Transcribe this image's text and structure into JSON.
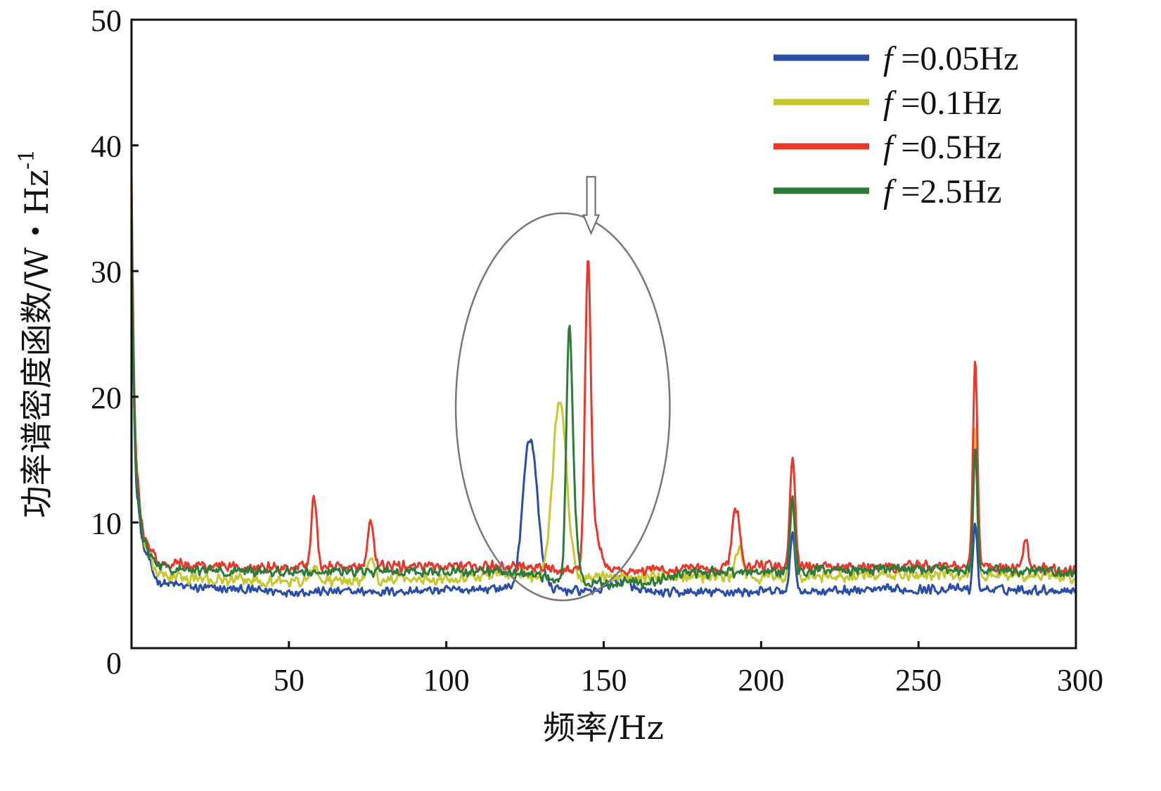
{
  "chart_data": {
    "type": "line",
    "xlabel": "频率/Hz",
    "ylabel": "功率谱密度函数/W・Hz",
    "ylabel_exponent": "-1",
    "xlim": [
      0,
      300
    ],
    "ylim": [
      0,
      50
    ],
    "xticks": [
      0,
      50,
      100,
      150,
      200,
      250,
      300
    ],
    "yticks": [
      0,
      10,
      20,
      30,
      40,
      50
    ],
    "grid": false,
    "legend_position": "top-right",
    "series": [
      {
        "name": "f =0.05Hz",
        "symbol": "f",
        "label": "=0.05Hz",
        "color": "#2a4ea8",
        "baseline": [
          [
            0,
            36
          ],
          [
            2,
            12
          ],
          [
            5,
            7.5
          ],
          [
            10,
            5.2
          ],
          [
            20,
            4.8
          ],
          [
            50,
            4.5
          ],
          [
            80,
            4.5
          ],
          [
            100,
            4.6
          ],
          [
            120,
            4.8
          ],
          [
            140,
            4.6
          ],
          [
            170,
            4.4
          ],
          [
            200,
            4.5
          ],
          [
            230,
            4.6
          ],
          [
            260,
            4.7
          ],
          [
            300,
            4.6
          ]
        ],
        "peaks": [
          [
            125,
            1.5,
            2.4
          ],
          [
            127,
            2.2,
            10.8
          ],
          [
            210,
            0.7,
            5.0
          ],
          [
            268,
            0.6,
            5.5
          ],
          [
            155,
            3,
            1.0
          ]
        ],
        "noise": 0.45
      },
      {
        "name": "f =0.1Hz",
        "symbol": "f",
        "label": "=0.1Hz",
        "color": "#c6c832",
        "baseline": [
          [
            0,
            37
          ],
          [
            2,
            13
          ],
          [
            5,
            8
          ],
          [
            10,
            5.8
          ],
          [
            20,
            5.5
          ],
          [
            50,
            5.3
          ],
          [
            80,
            5.4
          ],
          [
            100,
            5.6
          ],
          [
            120,
            5.9
          ],
          [
            140,
            5.5
          ],
          [
            170,
            5.8
          ],
          [
            200,
            5.6
          ],
          [
            230,
            5.7
          ],
          [
            260,
            5.9
          ],
          [
            300,
            5.6
          ]
        ],
        "peaks": [
          [
            136,
            2.2,
            14.2
          ],
          [
            193,
            1.2,
            2.2
          ],
          [
            210,
            0.8,
            5.5
          ],
          [
            268,
            0.7,
            11.5
          ],
          [
            58,
            1,
            1.2
          ],
          [
            76,
            1,
            2.0
          ]
        ],
        "noise": 0.55
      },
      {
        "name": "f =0.5Hz",
        "symbol": "f",
        "label": "=0.5Hz",
        "color": "#e8382c",
        "baseline": [
          [
            0,
            38
          ],
          [
            2,
            14
          ],
          [
            5,
            8.5
          ],
          [
            10,
            6.8
          ],
          [
            20,
            6.6
          ],
          [
            50,
            6.4
          ],
          [
            80,
            6.5
          ],
          [
            100,
            6.6
          ],
          [
            120,
            6.5
          ],
          [
            140,
            6.2
          ],
          [
            170,
            6.2
          ],
          [
            200,
            6.5
          ],
          [
            230,
            6.4
          ],
          [
            260,
            6.6
          ],
          [
            300,
            6.2
          ]
        ],
        "peaks": [
          [
            58,
            0.9,
            5.8
          ],
          [
            76,
            0.9,
            3.4
          ],
          [
            145,
            0.9,
            23.0
          ],
          [
            147,
            2,
            3.0
          ],
          [
            192,
            1.2,
            4.6
          ],
          [
            210,
            0.8,
            8.8
          ],
          [
            268,
            0.7,
            16.2
          ],
          [
            284,
            0.8,
            2.2
          ]
        ],
        "noise": 0.5
      },
      {
        "name": "f =2.5Hz",
        "symbol": "f",
        "label": "=2.5Hz",
        "color": "#2e7a38",
        "baseline": [
          [
            0,
            36
          ],
          [
            2,
            13
          ],
          [
            5,
            8
          ],
          [
            10,
            6.4
          ],
          [
            20,
            6.2
          ],
          [
            50,
            6.1
          ],
          [
            80,
            6.1
          ],
          [
            100,
            6.1
          ],
          [
            120,
            6.1
          ],
          [
            140,
            5.2
          ],
          [
            165,
            5.2
          ],
          [
            175,
            6.0
          ],
          [
            200,
            6.1
          ],
          [
            230,
            6.2
          ],
          [
            260,
            6.3
          ],
          [
            300,
            6.0
          ]
        ],
        "peaks": [
          [
            139,
            0.9,
            18.2
          ],
          [
            140.5,
            1.3,
            5.0
          ],
          [
            210,
            0.7,
            6.0
          ],
          [
            268,
            0.6,
            10.0
          ]
        ],
        "noise": 0.5
      }
    ],
    "annotations": [
      {
        "type": "ellipse",
        "center": [
          137,
          19.2
        ],
        "radius_x": 34,
        "radius_y": 15.4,
        "color": "#777777"
      },
      {
        "type": "arrow",
        "x": 146,
        "from_y": 37.5,
        "to_y": 33.0,
        "color": "#666666"
      }
    ]
  }
}
